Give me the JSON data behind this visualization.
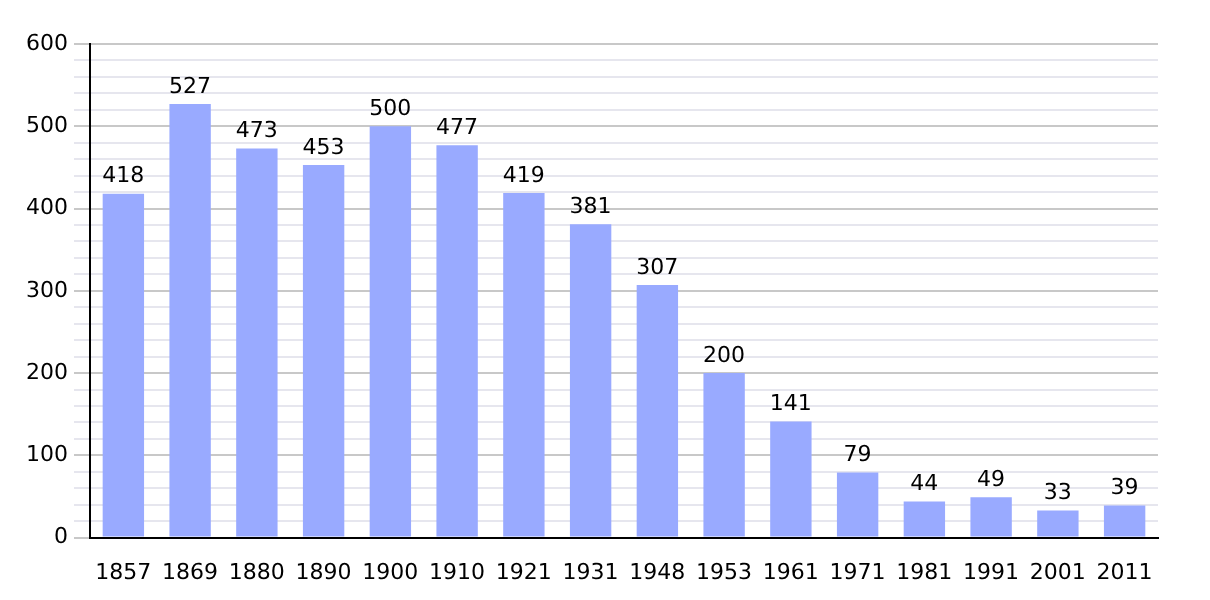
{
  "chart_data": {
    "type": "bar",
    "categories": [
      "1857",
      "1869",
      "1880",
      "1890",
      "1900",
      "1910",
      "1921",
      "1931",
      "1948",
      "1953",
      "1961",
      "1971",
      "1981",
      "1991",
      "2001",
      "2011"
    ],
    "values": [
      418,
      527,
      473,
      453,
      500,
      477,
      419,
      381,
      307,
      200,
      141,
      79,
      44,
      49,
      33,
      39
    ],
    "color": "#99aaff",
    "ylim": [
      0,
      600
    ],
    "yticks": [
      0,
      {
        "value": 20,
        "label": null
      },
      {
        "value": 40,
        "label": null
      },
      {
        "value": 60,
        "label": null
      },
      {
        "value": 80,
        "label": null
      },
      100,
      {
        "value": 120,
        "label": null
      },
      {
        "value": 140,
        "label": null
      },
      {
        "value": 160,
        "label": null
      },
      {
        "value": 180,
        "label": null
      },
      200,
      {
        "value": 220,
        "label": null
      },
      {
        "value": 240,
        "label": null
      },
      {
        "value": 260,
        "label": null
      },
      {
        "value": 280,
        "label": null
      },
      300,
      {
        "value": 320,
        "label": null
      },
      {
        "value": 340,
        "label": null
      },
      {
        "value": 360,
        "label": null
      },
      {
        "value": 380,
        "label": null
      },
      400,
      {
        "value": 420,
        "label": null
      },
      {
        "value": 440,
        "label": null
      },
      {
        "value": 460,
        "label": null
      },
      {
        "value": 480,
        "label": null
      },
      500,
      {
        "value": 520,
        "label": null
      },
      {
        "value": 540,
        "label": null
      },
      {
        "value": 560,
        "label": null
      },
      {
        "value": 580,
        "label": null
      },
      600
    ],
    "grid": "y",
    "data_labels": true,
    "legend": false
  }
}
